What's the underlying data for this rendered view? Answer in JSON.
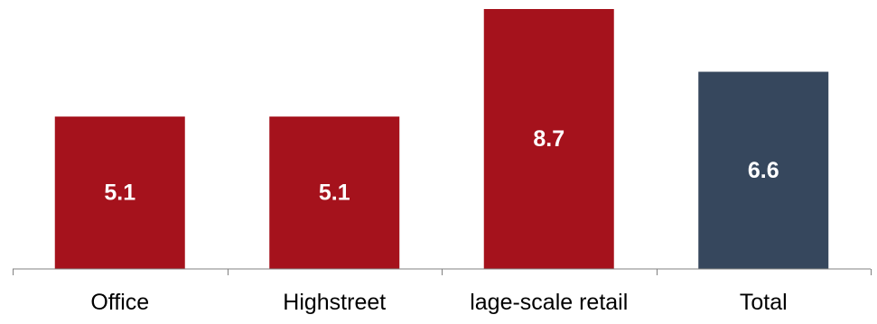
{
  "chart_data": {
    "type": "bar",
    "categories": [
      "Office",
      "Highstreet",
      "lage-scale retail",
      "Total"
    ],
    "values": [
      5.1,
      5.1,
      8.7,
      6.6
    ],
    "value_labels": [
      "5.1",
      "5.1",
      "8.7",
      "6.6"
    ],
    "title": "",
    "xlabel": "",
    "ylabel": "",
    "ylim": [
      0,
      8.7
    ],
    "grid": false,
    "legend": "none",
    "colors": {
      "bars": [
        "#A5121C",
        "#A5121C",
        "#A5121C",
        "#36475D"
      ],
      "axis": "#808080",
      "value_label": "#FFFFFF",
      "category_label": "#000000"
    }
  }
}
